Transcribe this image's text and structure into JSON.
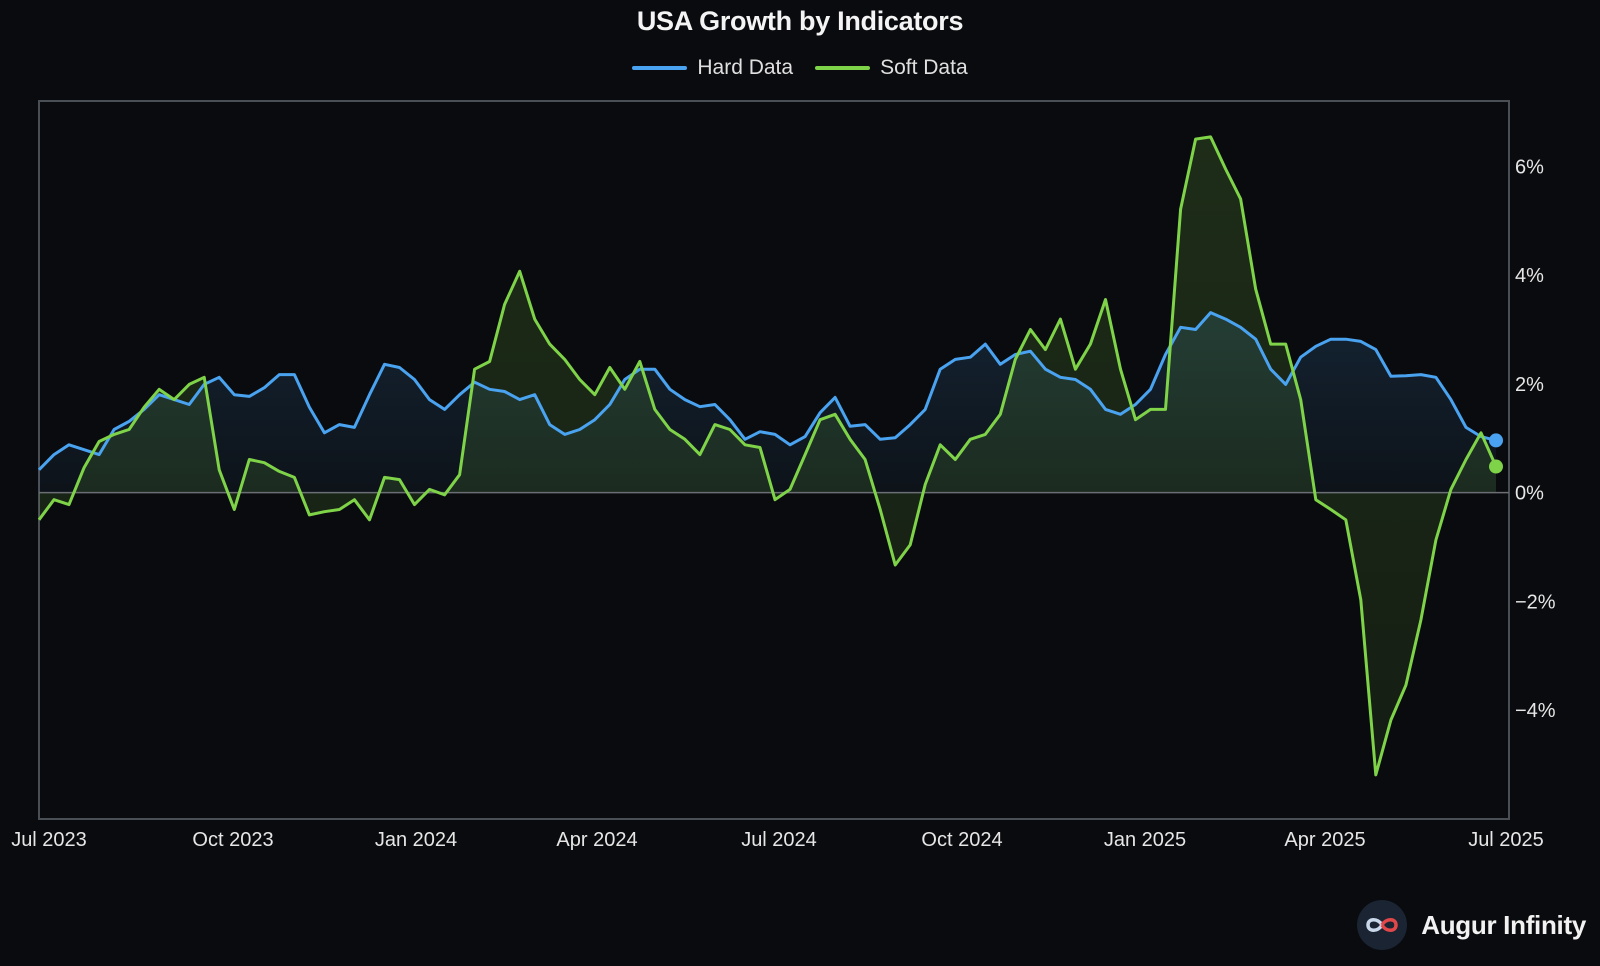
{
  "chart_data": {
    "type": "area",
    "title": "USA Growth by Indicators",
    "xlabel": "",
    "ylabel": "",
    "x_range": [
      "Jun 2023",
      "Jun 2025"
    ],
    "x_ticks": [
      "Jul 2023",
      "Oct 2023",
      "Jan 2024",
      "Apr 2024",
      "Jul 2024",
      "Oct 2024",
      "Jan 2025",
      "Apr 2025",
      "Jul 2025"
    ],
    "y_ticks": [
      {
        "value": 6,
        "label": "6%"
      },
      {
        "value": 4,
        "label": "4%"
      },
      {
        "value": 2,
        "label": "2%"
      },
      {
        "value": 0,
        "label": "0%"
      },
      {
        "value": -2,
        "label": "−2%"
      },
      {
        "value": -4,
        "label": "−4%"
      }
    ],
    "ylim": [
      -6.0,
      7.2
    ],
    "y_axis_side": "right",
    "y_unit": "%",
    "grid": false,
    "zero_line": true,
    "legend_position": "top-center",
    "series": [
      {
        "name": "Hard Data",
        "color": "#4aa3f0",
        "values": [
          0.42,
          0.7,
          0.88,
          0.79,
          0.7,
          1.16,
          1.31,
          1.53,
          1.8,
          1.71,
          1.62,
          1.99,
          2.12,
          1.8,
          1.77,
          1.93,
          2.17,
          2.17,
          1.57,
          1.1,
          1.25,
          1.2,
          1.8,
          2.36,
          2.3,
          2.08,
          1.71,
          1.53,
          1.8,
          2.03,
          1.9,
          1.86,
          1.71,
          1.8,
          1.25,
          1.07,
          1.16,
          1.34,
          1.62,
          2.08,
          2.27,
          2.27,
          1.9,
          1.71,
          1.58,
          1.62,
          1.34,
          0.98,
          1.12,
          1.07,
          0.88,
          1.03,
          1.47,
          1.75,
          1.22,
          1.25,
          0.98,
          1.01,
          1.25,
          1.53,
          2.27,
          2.45,
          2.49,
          2.73,
          2.36,
          2.54,
          2.6,
          2.27,
          2.12,
          2.08,
          1.9,
          1.53,
          1.44,
          1.62,
          1.9,
          2.54,
          3.04,
          3.0,
          3.31,
          3.19,
          3.04,
          2.82,
          2.27,
          1.99,
          2.49,
          2.69,
          2.82,
          2.82,
          2.78,
          2.63,
          2.14,
          2.15,
          2.17,
          2.12,
          1.71,
          1.2,
          1.03,
          0.96
        ],
        "last_value": 0.96
      },
      {
        "name": "Soft Data",
        "color": "#7ed348",
        "values": [
          -0.5,
          -0.13,
          -0.22,
          0.46,
          0.94,
          1.07,
          1.16,
          1.57,
          1.9,
          1.71,
          1.99,
          2.12,
          0.42,
          -0.31,
          0.61,
          0.55,
          0.39,
          0.28,
          -0.41,
          -0.35,
          -0.31,
          -0.13,
          -0.5,
          0.28,
          0.24,
          -0.22,
          0.06,
          -0.04,
          0.33,
          2.27,
          2.41,
          3.46,
          4.07,
          3.19,
          2.73,
          2.45,
          2.08,
          1.8,
          2.3,
          1.9,
          2.41,
          1.53,
          1.16,
          0.98,
          0.7,
          1.25,
          1.16,
          0.88,
          0.83,
          -0.13,
          0.06,
          0.7,
          1.34,
          1.44,
          0.98,
          0.61,
          -0.31,
          -1.33,
          -0.96,
          0.15,
          0.88,
          0.61,
          0.98,
          1.07,
          1.44,
          2.45,
          3.0,
          2.63,
          3.19,
          2.27,
          2.73,
          3.55,
          2.27,
          1.34,
          1.53,
          1.53,
          5.21,
          6.5,
          6.54,
          5.95,
          5.4,
          3.74,
          2.73,
          2.73,
          1.71,
          -0.13,
          -0.31,
          -0.5,
          -1.97,
          -5.19,
          -4.18,
          -3.54,
          -2.34,
          -0.87,
          0.06,
          0.61,
          1.1,
          0.48
        ],
        "last_value": 0.48
      }
    ]
  },
  "branding": {
    "name": "Augur Infinity",
    "logo_icon": "infinity-logo-icon"
  }
}
